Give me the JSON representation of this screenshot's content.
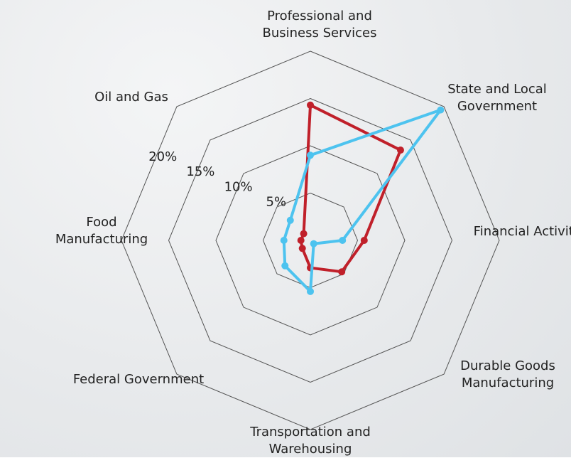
{
  "chart_data": {
    "type": "radar",
    "categories": [
      "Professional and Business Services",
      "State and Local Government",
      "Financial Activities",
      "Durable Goods Manufacturing",
      "Transportation and Warehousing",
      "Federal Government",
      "Food Manufacturing",
      "Oil and Gas"
    ],
    "series": [
      {
        "color": "#c0202a",
        "values": [
          14.3,
          13.5,
          5.7,
          4.7,
          2.9,
          1.2,
          1.0,
          1.0
        ]
      },
      {
        "color": "#4dc3ef",
        "values": [
          9.0,
          19.5,
          3.4,
          0.5,
          5.4,
          3.8,
          2.8,
          3.0
        ]
      }
    ],
    "ylim": [
      0,
      20
    ],
    "yticks": [
      {
        "value": 5,
        "label": "5%"
      },
      {
        "value": 10,
        "label": "10%"
      },
      {
        "value": 15,
        "label": "15%"
      },
      {
        "value": 20,
        "label": "20%"
      }
    ],
    "grid": true
  }
}
